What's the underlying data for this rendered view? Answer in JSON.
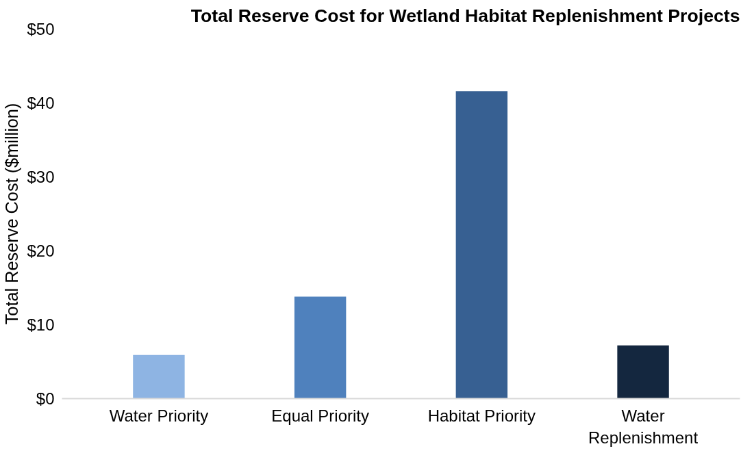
{
  "chart_data": {
    "type": "bar",
    "title": "Total Reserve Cost for Wetland Habitat Replenishment Projects",
    "ylabel": "Total Reserve Cost ($million)",
    "categories": [
      "Water Priority",
      "Equal Priority",
      "Habitat Priority",
      "Water Replenishment"
    ],
    "values": [
      5.9,
      13.8,
      41.6,
      7.2
    ],
    "colors": [
      "#8eb4e3",
      "#4f81bd",
      "#376092",
      "#14273f"
    ],
    "ylim": [
      0,
      50
    ],
    "yticks": [
      {
        "value": 0,
        "label": "$0"
      },
      {
        "value": 10,
        "label": "$10"
      },
      {
        "value": 20,
        "label": "$20"
      },
      {
        "value": 30,
        "label": "$30"
      },
      {
        "value": 40,
        "label": "$40"
      },
      {
        "value": 50,
        "label": "$50"
      }
    ],
    "grid": false
  }
}
